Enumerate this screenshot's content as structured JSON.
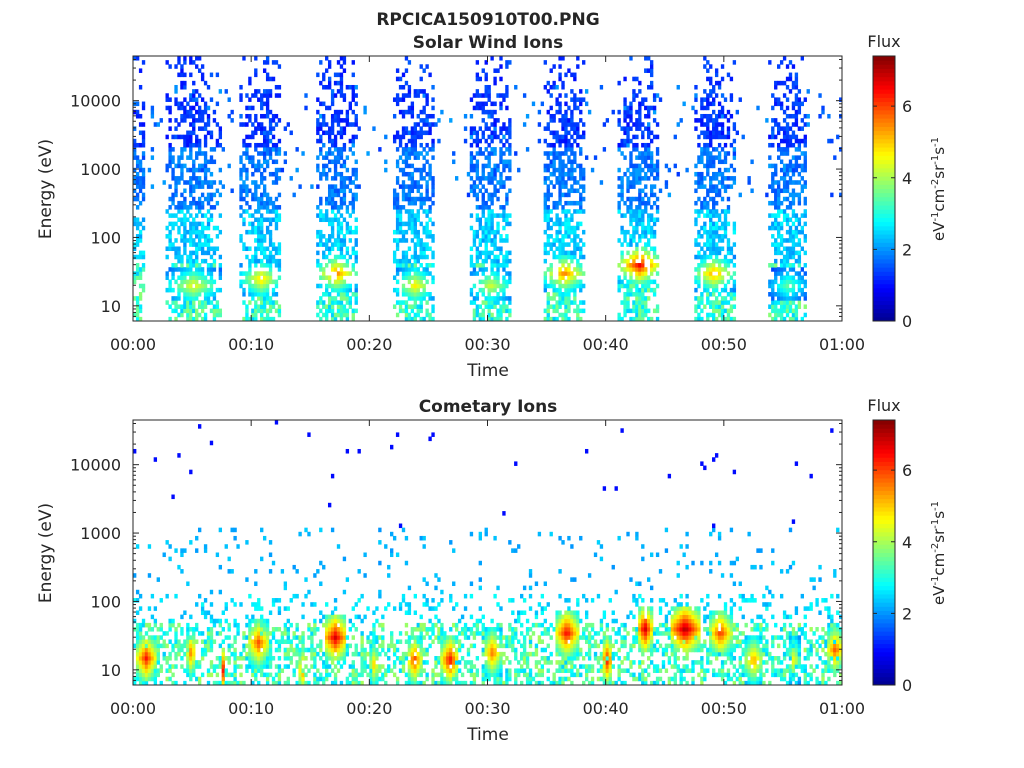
{
  "figure": {
    "title": "RPCICA150910T00.PNG"
  },
  "colormap": {
    "name": "jet",
    "stops": [
      "#00008f",
      "#0000ff",
      "#00ffff",
      "#ffff00",
      "#ff0000",
      "#800000"
    ]
  },
  "chart_data": [
    {
      "type": "heatmap",
      "title": "Solar Wind Ions",
      "xlabel": "Time",
      "ylabel": "Energy (eV)",
      "x_tick_labels": [
        "00:00",
        "00:10",
        "00:20",
        "00:30",
        "00:40",
        "00:50",
        "01:00"
      ],
      "x_ticks_min": [
        0,
        10,
        20,
        30,
        40,
        50,
        60
      ],
      "xlim_min": [
        0,
        60
      ],
      "y_scale": "log",
      "y_tick_labels": [
        "10",
        "100",
        "1000",
        "10000"
      ],
      "y_ticks": [
        10,
        100,
        1000,
        10000
      ],
      "ylim": [
        6,
        45000
      ],
      "colorbar": {
        "title": "Flux",
        "label": "eV-1cm-2sr-1s-1",
        "ticks": [
          "0",
          "2",
          "4",
          "6"
        ],
        "range": [
          0,
          7.4
        ]
      },
      "note": "Approximate: periodic ion bursts, peak flux near 20-40 eV, sparse high-energy counts",
      "bursts": [
        {
          "t_start": 0.0,
          "t_end": 0.8,
          "min_energy": 6,
          "peak_energy": 10000,
          "peak_flux": 2.2
        },
        {
          "t_start": 2.7,
          "t_end": 7.3,
          "min_energy": 6,
          "peak_energy": 20,
          "peak_flux": 4.6
        },
        {
          "t_start": 9.0,
          "t_end": 12.5,
          "min_energy": 6,
          "peak_energy": 25,
          "peak_flux": 5.0
        },
        {
          "t_start": 15.4,
          "t_end": 18.8,
          "min_energy": 6,
          "peak_energy": 30,
          "peak_flux": 5.6
        },
        {
          "t_start": 22.0,
          "t_end": 25.5,
          "min_energy": 6,
          "peak_energy": 20,
          "peak_flux": 4.8
        },
        {
          "t_start": 28.3,
          "t_end": 32.0,
          "min_energy": 6,
          "peak_energy": 20,
          "peak_flux": 4.4
        },
        {
          "t_start": 34.6,
          "t_end": 38.2,
          "min_energy": 6,
          "peak_energy": 30,
          "peak_flux": 5.6
        },
        {
          "t_start": 41.0,
          "t_end": 44.5,
          "min_energy": 6,
          "peak_energy": 40,
          "peak_flux": 6.6
        },
        {
          "t_start": 47.3,
          "t_end": 50.8,
          "min_energy": 6,
          "peak_energy": 30,
          "peak_flux": 5.4
        },
        {
          "t_start": 53.7,
          "t_end": 57.0,
          "min_energy": 6,
          "peak_energy": 20,
          "peak_flux": 3.6
        }
      ]
    },
    {
      "type": "heatmap",
      "title": "Cometary Ions",
      "xlabel": "Time",
      "ylabel": "Energy (eV)",
      "x_tick_labels": [
        "00:00",
        "00:10",
        "00:20",
        "00:30",
        "00:40",
        "00:50",
        "01:00"
      ],
      "x_ticks_min": [
        0,
        10,
        20,
        30,
        40,
        50,
        60
      ],
      "xlim_min": [
        0,
        60
      ],
      "y_scale": "log",
      "y_tick_labels": [
        "10",
        "100",
        "1000",
        "10000"
      ],
      "y_ticks": [
        10,
        100,
        1000,
        10000
      ],
      "ylim": [
        6,
        45000
      ],
      "colorbar": {
        "title": "Flux",
        "label": "eV-1cm-2sr-1s-1",
        "ticks": [
          "0",
          "2",
          "4",
          "6"
        ],
        "range": [
          0,
          7.4
        ]
      },
      "note": "Approximate: intense low-energy (8-40 eV) patches, sparse 100-1000 eV counts",
      "bursts": [
        {
          "t_center": 1.0,
          "t_width": 1.6,
          "peak_energy": 15,
          "peak_flux": 6.4
        },
        {
          "t_center": 4.8,
          "t_width": 0.8,
          "peak_energy": 18,
          "peak_flux": 5.8
        },
        {
          "t_center": 7.5,
          "t_width": 0.5,
          "peak_energy": 10,
          "peak_flux": 6.4
        },
        {
          "t_center": 10.5,
          "t_width": 1.8,
          "peak_energy": 25,
          "peak_flux": 6.0
        },
        {
          "t_center": 14.2,
          "t_width": 0.6,
          "peak_energy": 10,
          "peak_flux": 5.8
        },
        {
          "t_center": 17.0,
          "t_width": 2.0,
          "peak_energy": 30,
          "peak_flux": 6.8
        },
        {
          "t_center": 20.3,
          "t_width": 0.8,
          "peak_energy": 12,
          "peak_flux": 5.2
        },
        {
          "t_center": 23.7,
          "t_width": 1.2,
          "peak_energy": 14,
          "peak_flux": 6.2
        },
        {
          "t_center": 26.7,
          "t_width": 1.4,
          "peak_energy": 14,
          "peak_flux": 6.6
        },
        {
          "t_center": 30.3,
          "t_width": 1.4,
          "peak_energy": 18,
          "peak_flux": 5.8
        },
        {
          "t_center": 36.6,
          "t_width": 1.8,
          "peak_energy": 35,
          "peak_flux": 6.6
        },
        {
          "t_center": 40.0,
          "t_width": 1.0,
          "peak_energy": 14,
          "peak_flux": 6.4
        },
        {
          "t_center": 43.2,
          "t_width": 1.2,
          "peak_energy": 40,
          "peak_flux": 7.0
        },
        {
          "t_center": 46.6,
          "t_width": 2.4,
          "peak_energy": 40,
          "peak_flux": 7.2
        },
        {
          "t_center": 49.6,
          "t_width": 1.8,
          "peak_energy": 35,
          "peak_flux": 6.2
        },
        {
          "t_center": 52.4,
          "t_width": 1.6,
          "peak_energy": 14,
          "peak_flux": 5.4
        },
        {
          "t_center": 55.8,
          "t_width": 1.0,
          "peak_energy": 14,
          "peak_flux": 4.8
        },
        {
          "t_center": 59.3,
          "t_width": 1.4,
          "peak_energy": 20,
          "peak_flux": 6.0
        }
      ]
    }
  ]
}
